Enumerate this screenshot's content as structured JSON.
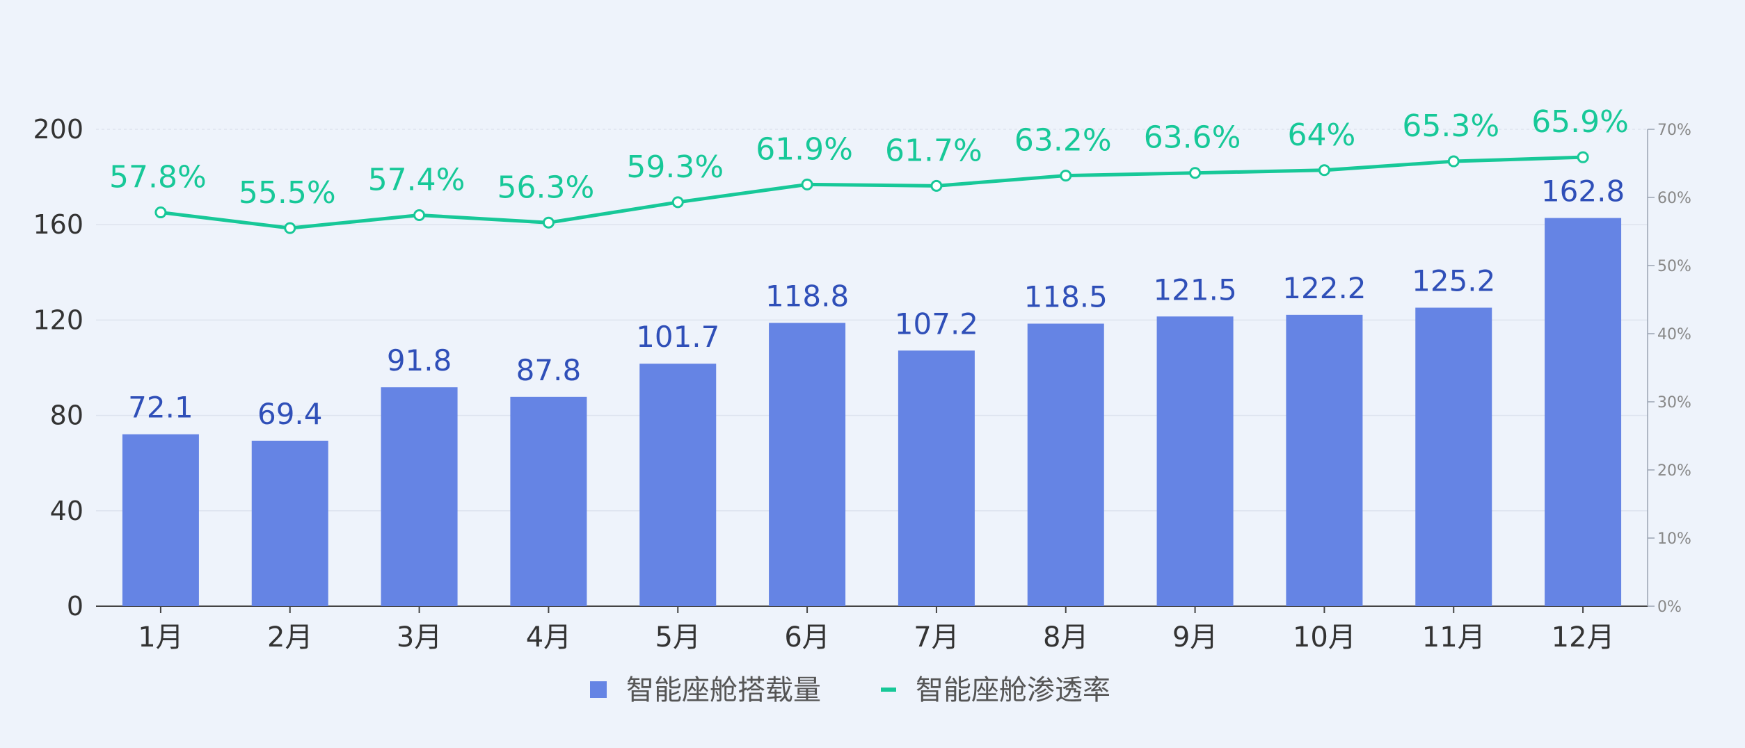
{
  "chart_data": {
    "type": "bar",
    "categories": [
      "1月",
      "2月",
      "3月",
      "4月",
      "5月",
      "6月",
      "7月",
      "8月",
      "9月",
      "10月",
      "11月",
      "12月"
    ],
    "series": [
      {
        "name": "智能座舱搭载量",
        "type": "bar",
        "axis": "left",
        "values": [
          72.1,
          69.4,
          91.8,
          87.8,
          101.7,
          118.8,
          107.2,
          118.5,
          121.5,
          122.2,
          125.2,
          162.8
        ],
        "labels": [
          "72.1",
          "69.4",
          "91.8",
          "87.8",
          "101.7",
          "118.8",
          "107.2",
          "118.5",
          "121.5",
          "122.2",
          "125.2",
          "162.8"
        ]
      },
      {
        "name": "智能座舱渗透率",
        "type": "line",
        "axis": "right",
        "values": [
          57.8,
          55.5,
          57.4,
          56.3,
          59.3,
          61.9,
          61.7,
          63.2,
          63.6,
          64,
          65.3,
          65.9
        ],
        "labels": [
          "57.8%",
          "55.5%",
          "57.4%",
          "56.3%",
          "59.3%",
          "61.9%",
          "61.7%",
          "63.2%",
          "63.6%",
          "64%",
          "65.3%",
          "65.9%"
        ]
      }
    ],
    "y_left": {
      "ylim": [
        0,
        200
      ],
      "ticks": [
        "0",
        "40",
        "80",
        "120",
        "160",
        "200"
      ]
    },
    "y_right": {
      "ylim": [
        0,
        70
      ],
      "ticks": [
        "0%",
        "10%",
        "20%",
        "30%",
        "40%",
        "50%",
        "60%",
        "70%"
      ]
    },
    "legend": {
      "position": "bottom"
    },
    "grid": true,
    "colors": {
      "bar": "#6584e4",
      "bar_label": "#2f4fb8",
      "line": "#17c898",
      "line_label": "#17c898",
      "axis_text": "#333333",
      "right_axis_text": "#888888"
    }
  }
}
